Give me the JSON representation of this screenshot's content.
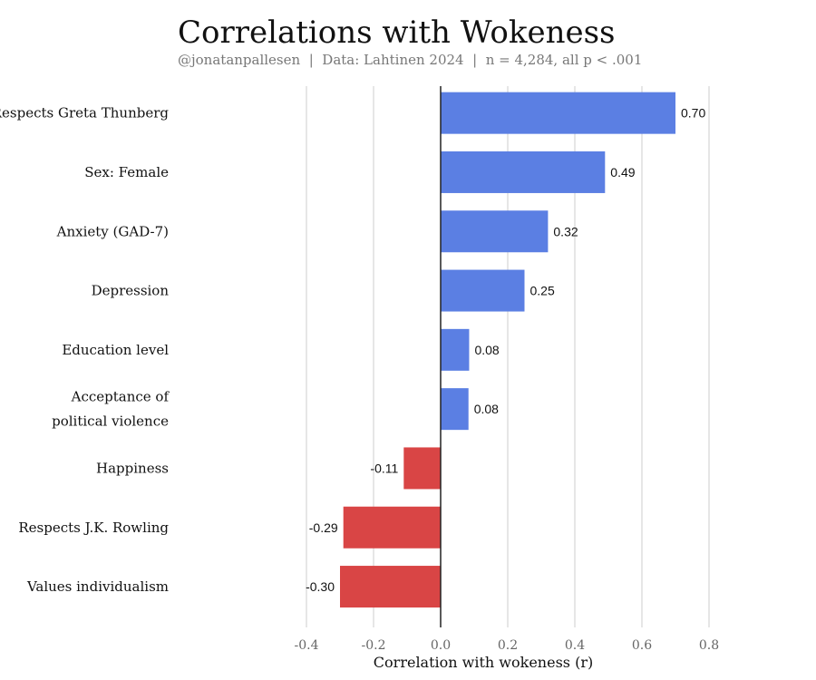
{
  "chart_data": {
    "type": "bar",
    "orientation": "horizontal",
    "title": "Correlations with Wokeness",
    "subtitle": "@jonatanpallesen  |  Data: Lahtinen 2024  |  n = 4,284, all p < .001",
    "xlabel": "Correlation with wokeness (r)",
    "ylabel": "",
    "xlim": [
      -0.4,
      0.8
    ],
    "xticks": [
      -0.4,
      -0.2,
      0.0,
      0.2,
      0.4,
      0.6,
      0.8
    ],
    "xtick_labels": [
      "-0.4",
      "-0.2",
      "0.0",
      "0.2",
      "0.4",
      "0.6",
      "0.8"
    ],
    "grid": true,
    "positive_color": "#5b7fe3",
    "negative_color": "#d94545",
    "categories": [
      [
        "Respects Greta Thunberg"
      ],
      [
        "Sex: Female"
      ],
      [
        "Anxiety (GAD-7)"
      ],
      [
        "Depression"
      ],
      [
        "Education level"
      ],
      [
        "Acceptance of",
        "political violence"
      ],
      [
        "Happiness"
      ],
      [
        "Respects J.K. Rowling"
      ],
      [
        "Values individualism"
      ]
    ],
    "values": [
      0.7,
      0.49,
      0.32,
      0.25,
      0.085,
      0.083,
      -0.11,
      -0.29,
      -0.3
    ],
    "value_labels": [
      "0.70",
      "0.49",
      "0.32",
      "0.25",
      "0.08",
      "0.08",
      "-0.11",
      "-0.29",
      "-0.30"
    ]
  }
}
